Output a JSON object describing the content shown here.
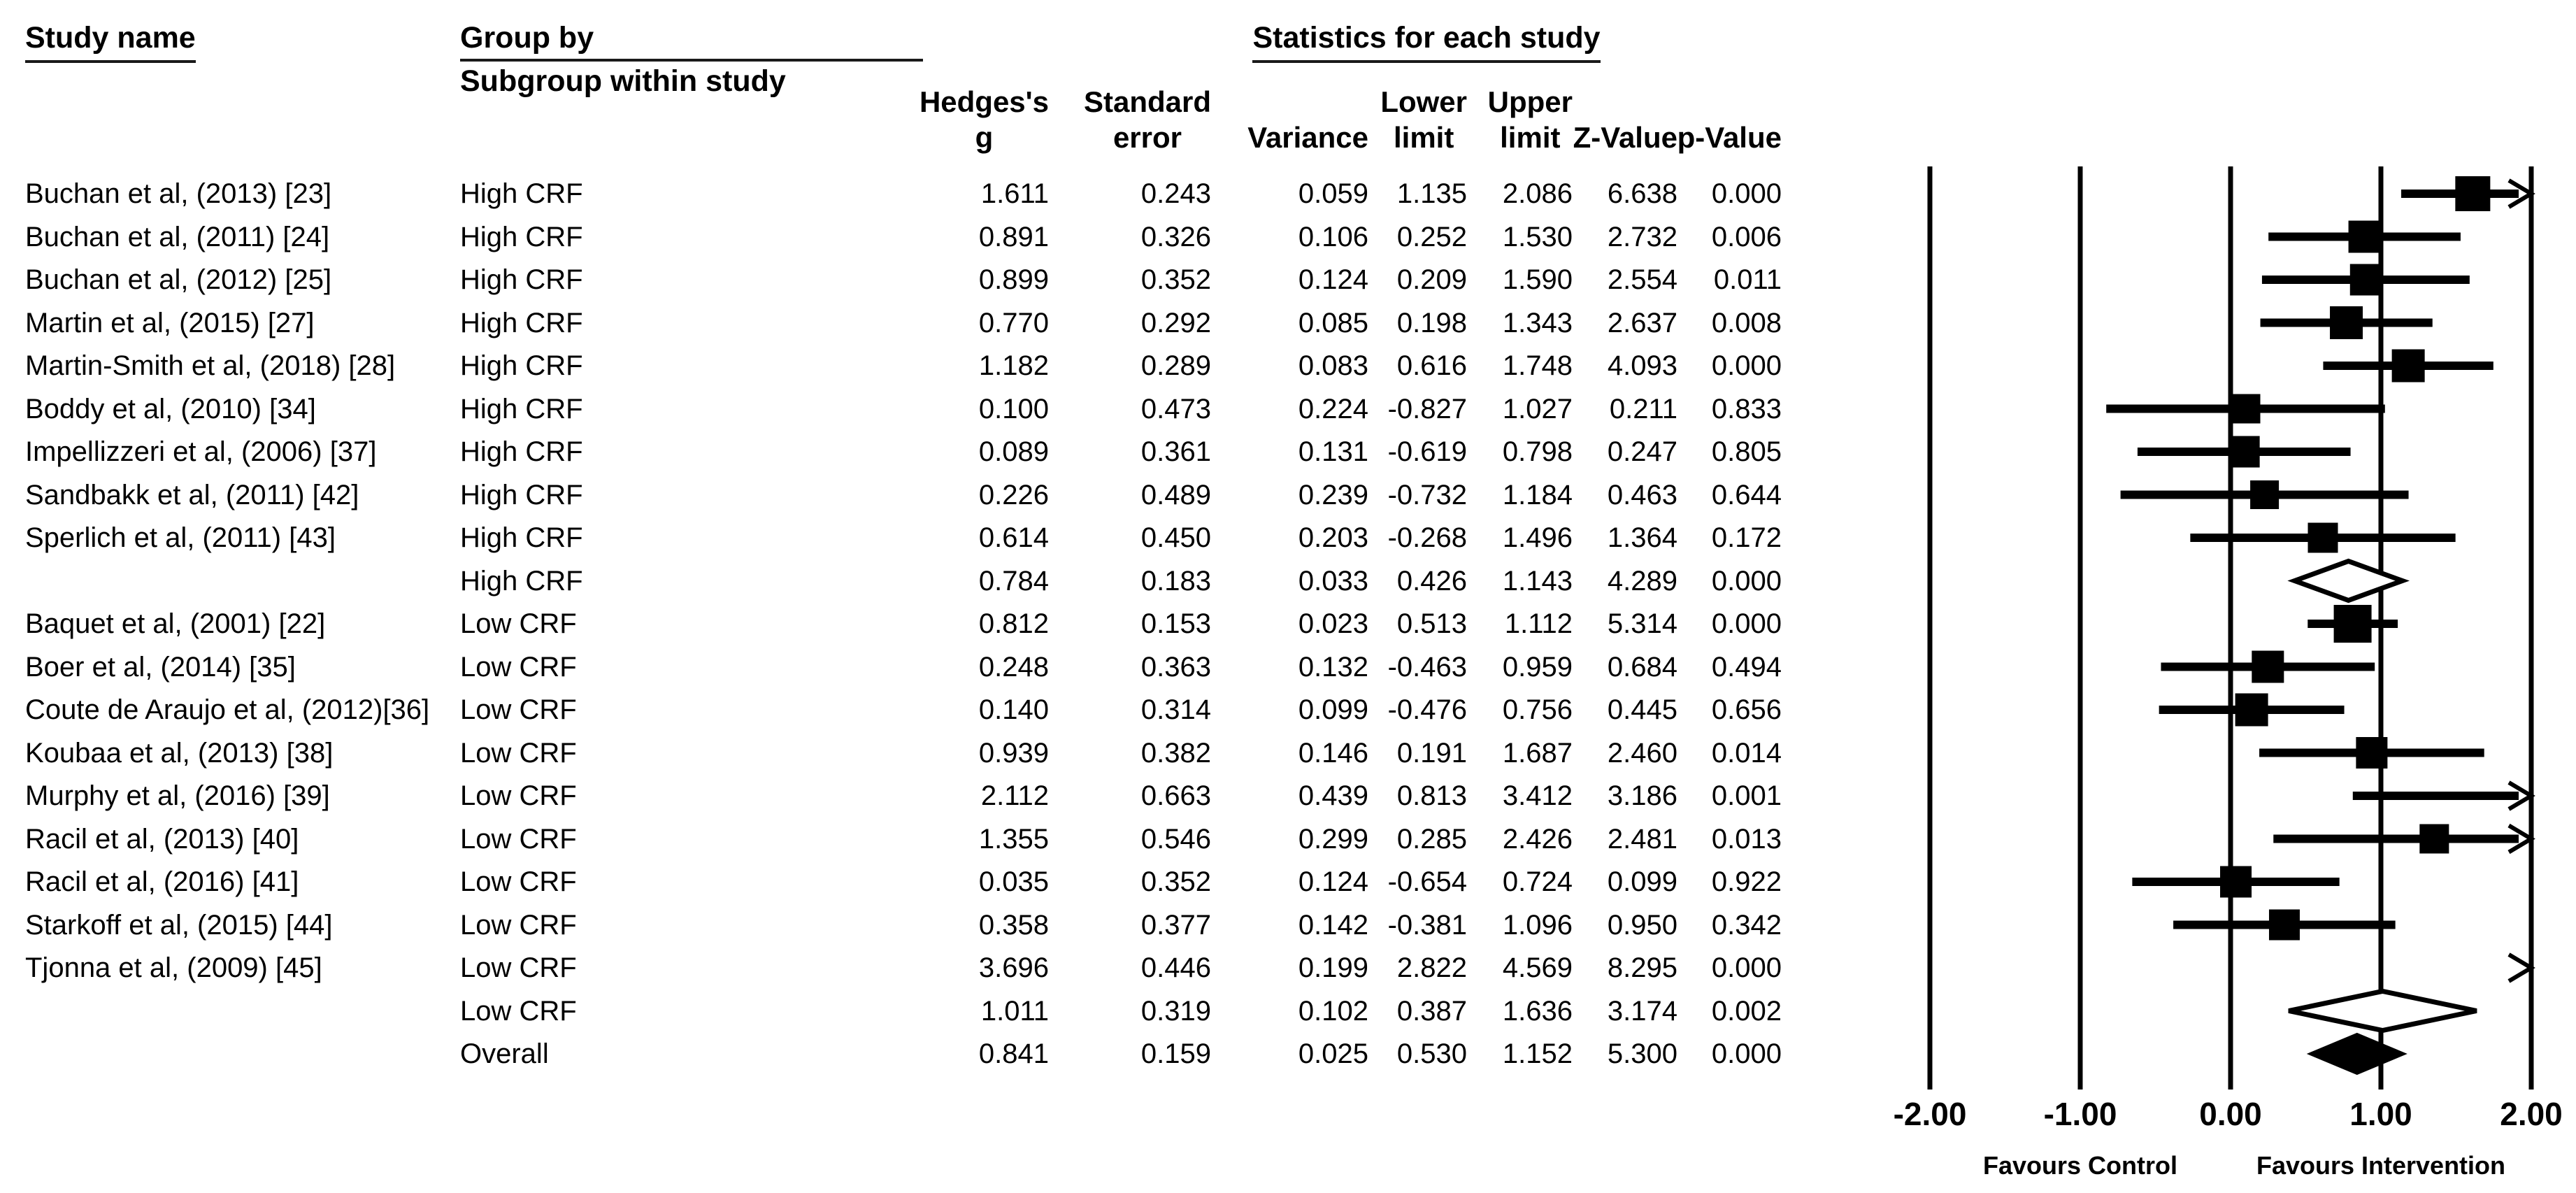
{
  "figure": {
    "header": {
      "study_name_label": "Study name",
      "group_by_label": "Group by",
      "subgroup_label": "Subgroup within study",
      "stats_title": "Statistics for each study",
      "stat_columns": [
        {
          "name": "hedges-g",
          "lines": [
            "Hedges's",
            "g"
          ]
        },
        {
          "name": "standard-error",
          "lines": [
            "Standard",
            "error"
          ]
        },
        {
          "name": "variance",
          "lines": [
            "Variance"
          ]
        },
        {
          "name": "lower-limit",
          "lines": [
            "Lower",
            "limit"
          ]
        },
        {
          "name": "upper-limit",
          "lines": [
            "Upper",
            "limit"
          ]
        },
        {
          "name": "z-value",
          "lines": [
            "Z-Value"
          ]
        },
        {
          "name": "p-value",
          "lines": [
            "p-Value"
          ]
        }
      ]
    },
    "axis": {
      "ticks": [
        "-2.00",
        "-1.00",
        "0.00",
        "1.00",
        "2.00"
      ],
      "tick_values": [
        -2,
        -1,
        0,
        1,
        2
      ],
      "favours_left": "Favours Control",
      "favours_right": "Favours Intervention"
    },
    "colors": {
      "ink": "#000000",
      "background": "#ffffff"
    }
  },
  "chart_data": {
    "type": "scatter",
    "subtype": "forest-plot-meta-analysis",
    "title": "",
    "effect_measure": "Hedges's g",
    "xlim": [
      -2,
      2
    ],
    "x_ticks": [
      -2.0,
      -1.0,
      0.0,
      1.0,
      2.0
    ],
    "grid": "vertical-lines-at-ticks",
    "annotations": {
      "left_of_zero": "Favours Control",
      "right_of_zero": "Favours Intervention"
    },
    "rows": [
      {
        "study": "Buchan et al, (2013) [23]",
        "subgroup": "High CRF",
        "kind": "study",
        "g": 1.611,
        "se": 0.243,
        "variance": 0.059,
        "lower": 1.135,
        "upper": 2.086,
        "z": 6.638,
        "p": 0.0,
        "marker_size": 50
      },
      {
        "study": "Buchan et al, (2011) [24]",
        "subgroup": "High CRF",
        "kind": "study",
        "g": 0.891,
        "se": 0.326,
        "variance": 0.106,
        "lower": 0.252,
        "upper": 1.53,
        "z": 2.732,
        "p": 0.006,
        "marker_size": 46
      },
      {
        "study": "Buchan et al, (2012) [25]",
        "subgroup": "High CRF",
        "kind": "study",
        "g": 0.899,
        "se": 0.352,
        "variance": 0.124,
        "lower": 0.209,
        "upper": 1.59,
        "z": 2.554,
        "p": 0.011,
        "marker_size": 45
      },
      {
        "study": "Martin et al, (2015) [27]",
        "subgroup": "High CRF",
        "kind": "study",
        "g": 0.77,
        "se": 0.292,
        "variance": 0.085,
        "lower": 0.198,
        "upper": 1.343,
        "z": 2.637,
        "p": 0.008,
        "marker_size": 47
      },
      {
        "study": "Martin-Smith et al, (2018) [28]",
        "subgroup": "High CRF",
        "kind": "study",
        "g": 1.182,
        "se": 0.289,
        "variance": 0.083,
        "lower": 0.616,
        "upper": 1.748,
        "z": 4.093,
        "p": 0.0,
        "marker_size": 47
      },
      {
        "study": "Boddy et al, (2010) [34]",
        "subgroup": "High CRF",
        "kind": "study",
        "g": 0.1,
        "se": 0.473,
        "variance": 0.224,
        "lower": -0.827,
        "upper": 1.027,
        "z": 0.211,
        "p": 0.833,
        "marker_size": 42
      },
      {
        "study": "Impellizzeri et al, (2006) [37]",
        "subgroup": "High CRF",
        "kind": "study",
        "g": 0.089,
        "se": 0.361,
        "variance": 0.131,
        "lower": -0.619,
        "upper": 0.798,
        "z": 0.247,
        "p": 0.805,
        "marker_size": 45
      },
      {
        "study": "Sandbakk et al, (2011) [42]",
        "subgroup": "High CRF",
        "kind": "study",
        "g": 0.226,
        "se": 0.489,
        "variance": 0.239,
        "lower": -0.732,
        "upper": 1.184,
        "z": 0.463,
        "p": 0.644,
        "marker_size": 41
      },
      {
        "study": "Sperlich et al, (2011) [43]",
        "subgroup": "High CRF",
        "kind": "study",
        "g": 0.614,
        "se": 0.45,
        "variance": 0.203,
        "lower": -0.268,
        "upper": 1.496,
        "z": 1.364,
        "p": 0.172,
        "marker_size": 43
      },
      {
        "study": "",
        "subgroup": "High CRF",
        "kind": "subgroup-summary",
        "g": 0.784,
        "se": 0.183,
        "variance": 0.033,
        "lower": 0.426,
        "upper": 1.143,
        "z": 4.289,
        "p": 0.0,
        "marker_size": 0
      },
      {
        "study": "Baquet et al, (2001) [22]",
        "subgroup": "Low CRF",
        "kind": "study",
        "g": 0.812,
        "se": 0.153,
        "variance": 0.023,
        "lower": 0.513,
        "upper": 1.112,
        "z": 5.314,
        "p": 0.0,
        "marker_size": 54
      },
      {
        "study": "Boer et al, (2014) [35]",
        "subgroup": "Low CRF",
        "kind": "study",
        "g": 0.248,
        "se": 0.363,
        "variance": 0.132,
        "lower": -0.463,
        "upper": 0.959,
        "z": 0.684,
        "p": 0.494,
        "marker_size": 46
      },
      {
        "study": "Coute de Araujo et al, (2012)[36]",
        "subgroup": "Low CRF",
        "kind": "study",
        "g": 0.14,
        "se": 0.314,
        "variance": 0.099,
        "lower": -0.476,
        "upper": 0.756,
        "z": 0.445,
        "p": 0.656,
        "marker_size": 47
      },
      {
        "study": "Koubaa et al, (2013) [38]",
        "subgroup": "Low CRF",
        "kind": "study",
        "g": 0.939,
        "se": 0.382,
        "variance": 0.146,
        "lower": 0.191,
        "upper": 1.687,
        "z": 2.46,
        "p": 0.014,
        "marker_size": 45
      },
      {
        "study": "Murphy et al, (2016) [39]",
        "subgroup": "Low CRF",
        "kind": "study",
        "g": 2.112,
        "se": 0.663,
        "variance": 0.439,
        "lower": 0.813,
        "upper": 3.412,
        "z": 3.186,
        "p": 0.001,
        "marker_size": 36
      },
      {
        "study": "Racil et al, (2013) [40]",
        "subgroup": "Low CRF",
        "kind": "study",
        "g": 1.355,
        "se": 0.546,
        "variance": 0.299,
        "lower": 0.285,
        "upper": 2.426,
        "z": 2.481,
        "p": 0.013,
        "marker_size": 42
      },
      {
        "study": "Racil et al, (2016) [41]",
        "subgroup": "Low CRF",
        "kind": "study",
        "g": 0.035,
        "se": 0.352,
        "variance": 0.124,
        "lower": -0.654,
        "upper": 0.724,
        "z": 0.099,
        "p": 0.922,
        "marker_size": 45
      },
      {
        "study": "Starkoff et al, (2015) [44]",
        "subgroup": "Low CRF",
        "kind": "study",
        "g": 0.358,
        "se": 0.377,
        "variance": 0.142,
        "lower": -0.381,
        "upper": 1.096,
        "z": 0.95,
        "p": 0.342,
        "marker_size": 44
      },
      {
        "study": "Tjonna et al, (2009) [45]",
        "subgroup": "Low CRF",
        "kind": "study",
        "g": 3.696,
        "se": 0.446,
        "variance": 0.199,
        "lower": 2.822,
        "upper": 4.569,
        "z": 8.295,
        "p": 0.0,
        "marker_size": 42
      },
      {
        "study": "",
        "subgroup": "Low CRF",
        "kind": "subgroup-summary",
        "g": 1.011,
        "se": 0.319,
        "variance": 0.102,
        "lower": 0.387,
        "upper": 1.636,
        "z": 3.174,
        "p": 0.002,
        "marker_size": 0
      },
      {
        "study": "",
        "subgroup": "Overall",
        "kind": "overall-summary",
        "g": 0.841,
        "se": 0.159,
        "variance": 0.025,
        "lower": 0.53,
        "upper": 1.152,
        "z": 5.3,
        "p": 0.0,
        "marker_size": 0
      }
    ]
  }
}
